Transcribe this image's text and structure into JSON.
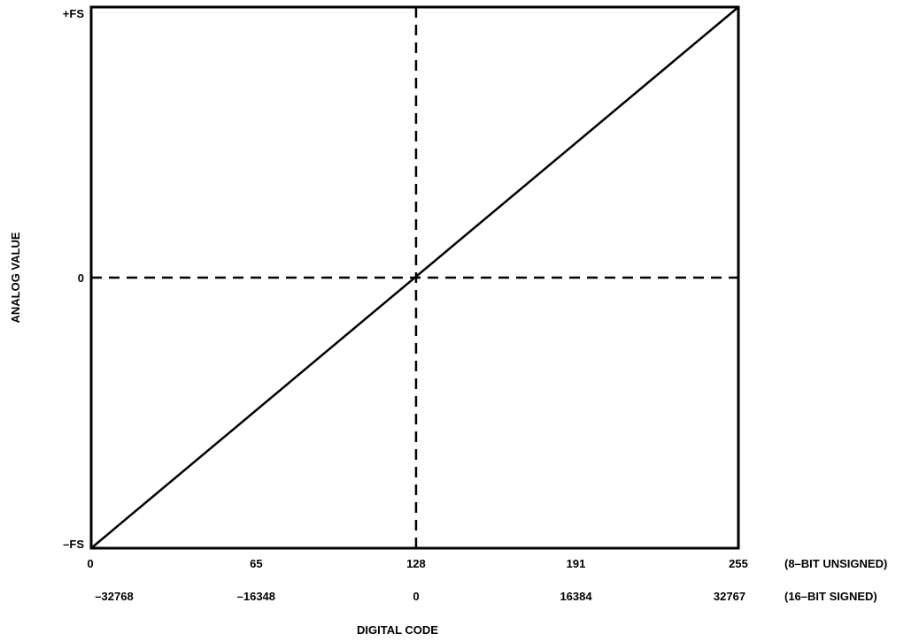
{
  "chart_data": {
    "type": "line",
    "xlabel": "DIGITAL CODE",
    "ylabel": "ANALOG VALUE",
    "xlim": [
      0,
      255
    ],
    "ylim": [
      -1,
      1
    ],
    "grid": false,
    "y_ticks": [
      {
        "value": 1,
        "label": "+FS"
      },
      {
        "value": 0,
        "label": "0"
      },
      {
        "value": -1,
        "label": "–FS"
      }
    ],
    "x_axes": [
      {
        "caption": "(8–BIT UNSIGNED)",
        "ticks": [
          {
            "value": 0,
            "label": "0"
          },
          {
            "value": 65,
            "label": "65"
          },
          {
            "value": 128,
            "label": "128"
          },
          {
            "value": 191,
            "label": "191"
          },
          {
            "value": 255,
            "label": "255"
          }
        ]
      },
      {
        "caption": "(16–BIT SIGNED)",
        "ticks": [
          {
            "value": 0,
            "label": "–32768"
          },
          {
            "value": 65,
            "label": "–16348"
          },
          {
            "value": 128,
            "label": "0"
          },
          {
            "value": 191,
            "label": "16384"
          },
          {
            "value": 255,
            "label": "32767"
          }
        ]
      }
    ],
    "series": [
      {
        "x": [
          0,
          255
        ],
        "y": [
          -1,
          1
        ],
        "color": "#000000"
      }
    ],
    "reference_lines": [
      {
        "axis": "x",
        "value": 128,
        "style": "dashed"
      },
      {
        "axis": "y",
        "value": 0,
        "style": "dashed"
      }
    ]
  }
}
